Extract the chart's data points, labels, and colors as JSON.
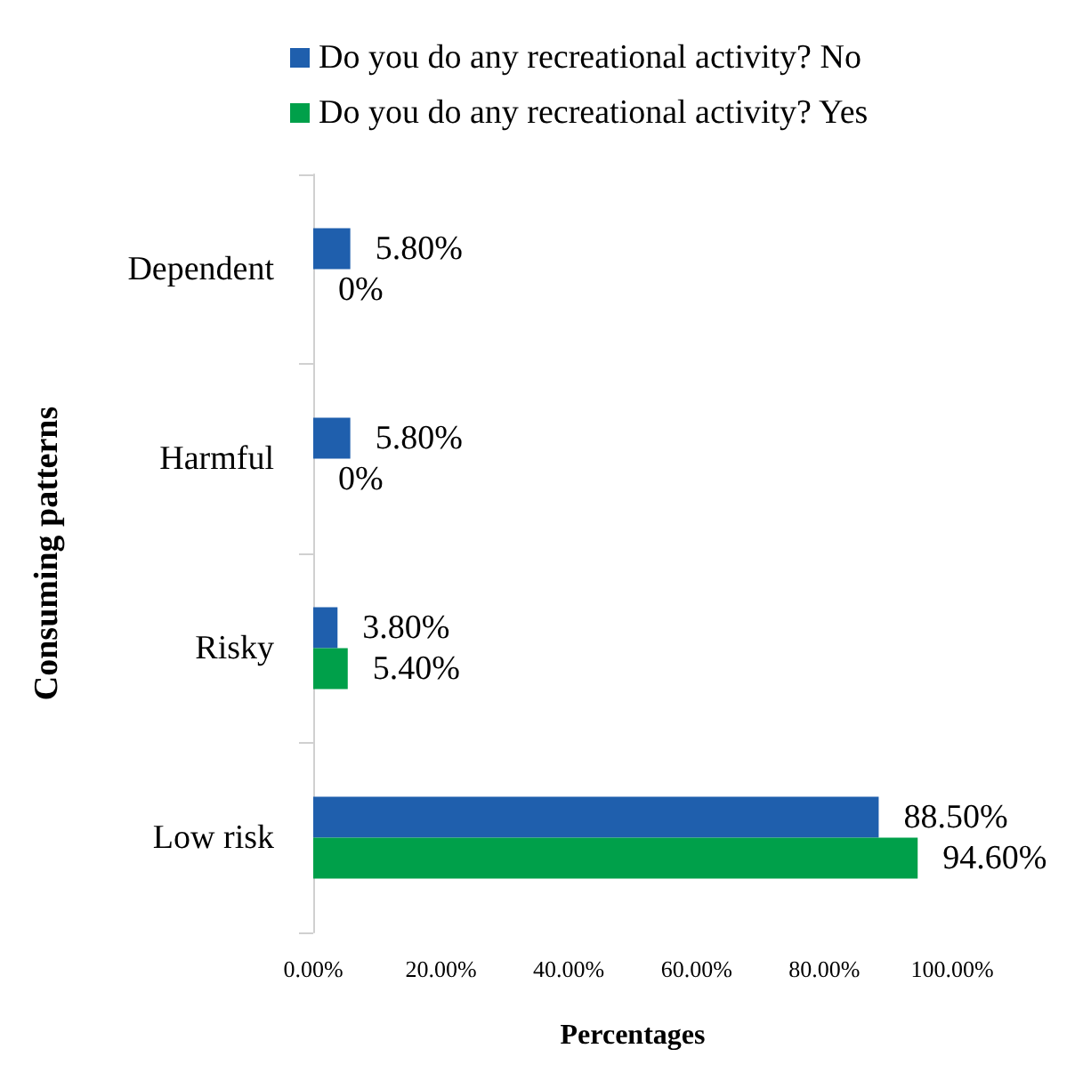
{
  "chart_data": {
    "type": "bar",
    "orientation": "horizontal",
    "categories": [
      "Dependent",
      "Harmful",
      "Risky",
      "Low risk"
    ],
    "series": [
      {
        "name": "Do you do any recreational activity? No",
        "color": "#1f5fad",
        "values": [
          5.8,
          5.8,
          3.8,
          88.5
        ],
        "value_labels": [
          "5.80%",
          "5.80%",
          "3.80%",
          "88.50%"
        ]
      },
      {
        "name": "Do you do any recreational activity? Yes",
        "color": "#00a04a",
        "values": [
          0,
          0,
          5.4,
          94.6
        ],
        "value_labels": [
          "0%",
          "0%",
          "5.40%",
          "94.60%"
        ]
      }
    ],
    "xlim": [
      0,
      100
    ],
    "xticks": [
      {
        "value": 0,
        "label": "0.00%"
      },
      {
        "value": 20,
        "label": "20.00%"
      },
      {
        "value": 40,
        "label": "40.00%"
      },
      {
        "value": 60,
        "label": "60.00%"
      },
      {
        "value": 80,
        "label": "80.00%"
      },
      {
        "value": 100,
        "label": "100.00%"
      }
    ],
    "xlabel": "Percentages",
    "ylabel": "Consuming patterns",
    "grid": false,
    "legend": "top"
  }
}
